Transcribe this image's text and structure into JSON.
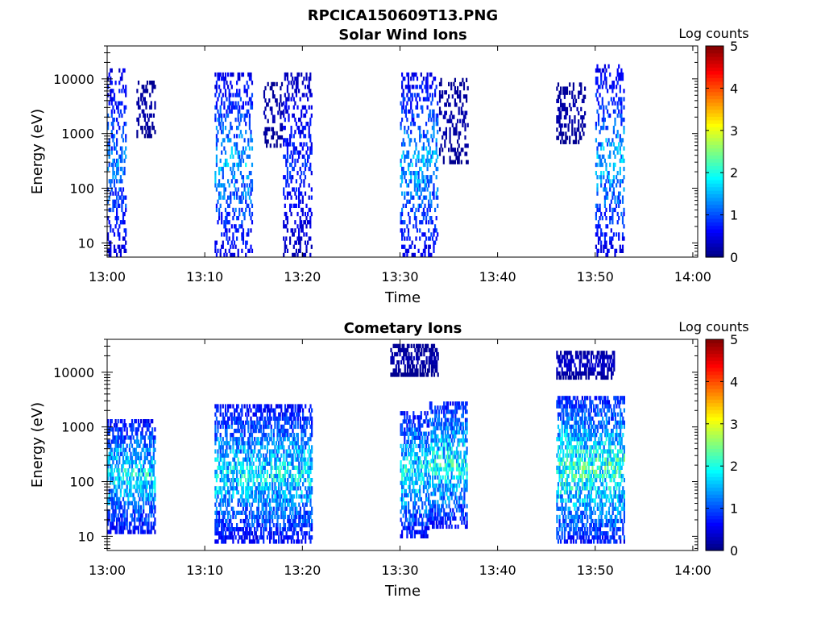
{
  "figure": {
    "title": "RPCICA150609T13.PNG"
  },
  "chart_data": [
    {
      "type": "heatmap",
      "title": "Solar Wind Ions",
      "xlabel": "Time",
      "ylabel": "Energy (eV)",
      "y_scale": "log",
      "x_range_minutes": [
        0,
        60.5
      ],
      "ylim": [
        5.5,
        40000
      ],
      "xticks": [
        "13:00",
        "13:10",
        "13:20",
        "13:30",
        "13:40",
        "13:50",
        "14:00"
      ],
      "xtick_minutes": [
        0,
        10,
        20,
        30,
        40,
        50,
        60
      ],
      "yticks": [
        "10",
        "100",
        "1000",
        "10000"
      ],
      "ytick_values": [
        10,
        100,
        1000,
        10000
      ],
      "colorbar": {
        "label": "Log counts",
        "ticks": [
          "0",
          "1",
          "2",
          "3",
          "4",
          "5"
        ],
        "range": [
          0,
          5
        ]
      },
      "bursts": [
        {
          "start": "13:00",
          "end": "13:01",
          "energy_range_eV": [
            6,
            15000
          ],
          "peak_log_counts": 1.5
        },
        {
          "start": "13:03",
          "end": "13:04",
          "energy_range_eV": [
            900,
            9000
          ],
          "peak_log_counts": 0.3
        },
        {
          "start": "13:11",
          "end": "13:14",
          "energy_range_eV": [
            6,
            13000
          ],
          "peak_log_counts": 1.8
        },
        {
          "start": "13:16",
          "end": "13:17",
          "energy_range_eV": [
            600,
            9000
          ],
          "peak_log_counts": 0.3
        },
        {
          "start": "13:18",
          "end": "13:20",
          "energy_range_eV": [
            6,
            14000
          ],
          "peak_log_counts": 1.0
        },
        {
          "start": "13:30",
          "end": "13:33",
          "energy_range_eV": [
            6,
            13000
          ],
          "peak_log_counts": 1.8
        },
        {
          "start": "13:34",
          "end": "13:36",
          "energy_range_eV": [
            300,
            10000
          ],
          "peak_log_counts": 0.3
        },
        {
          "start": "13:46",
          "end": "13:48",
          "energy_range_eV": [
            700,
            9000
          ],
          "peak_log_counts": 0.3
        },
        {
          "start": "13:50",
          "end": "13:52",
          "energy_range_eV": [
            6,
            17000
          ],
          "peak_log_counts": 1.8
        }
      ]
    },
    {
      "type": "heatmap",
      "title": "Cometary Ions",
      "xlabel": "Time",
      "ylabel": "Energy (eV)",
      "y_scale": "log",
      "x_range_minutes": [
        0,
        60.5
      ],
      "ylim": [
        5.5,
        40000
      ],
      "xticks": [
        "13:00",
        "13:10",
        "13:20",
        "13:30",
        "13:40",
        "13:50",
        "14:00"
      ],
      "xtick_minutes": [
        0,
        10,
        20,
        30,
        40,
        50,
        60
      ],
      "yticks": [
        "10",
        "100",
        "1000",
        "10000"
      ],
      "ytick_values": [
        10,
        100,
        1000,
        10000
      ],
      "colorbar": {
        "label": "Log counts",
        "ticks": [
          "0",
          "1",
          "2",
          "3",
          "4",
          "5"
        ],
        "range": [
          0,
          5
        ]
      },
      "bursts": [
        {
          "start": "13:00",
          "end": "13:04",
          "energy_range_eV": [
            12,
            1500
          ],
          "peak_log_counts": 2.2
        },
        {
          "start": "13:11",
          "end": "13:20",
          "energy_range_eV": [
            8,
            2500
          ],
          "peak_log_counts": 2.2
        },
        {
          "start": "13:30",
          "end": "13:32",
          "energy_range_eV": [
            10,
            2000
          ],
          "peak_log_counts": 2.3
        },
        {
          "start": "13:33",
          "end": "13:36",
          "energy_range_eV": [
            15,
            3000
          ],
          "peak_log_counts": 2.4
        },
        {
          "start": "13:46",
          "end": "13:52",
          "energy_range_eV": [
            8,
            3500
          ],
          "peak_log_counts": 2.6
        },
        {
          "start": "13:29",
          "end": "13:33",
          "energy_range_eV": [
            9000,
            35000
          ],
          "peak_log_counts": 0.3
        },
        {
          "start": "13:46",
          "end": "13:51",
          "energy_range_eV": [
            8000,
            25000
          ],
          "peak_log_counts": 0.5
        }
      ]
    }
  ]
}
